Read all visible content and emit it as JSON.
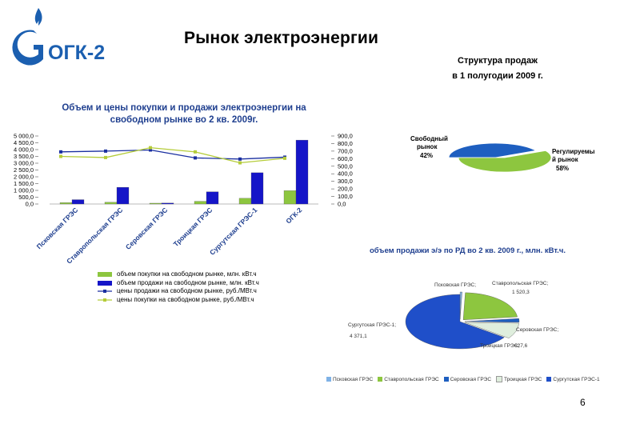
{
  "header": {
    "logo_text": "ОГК-2",
    "title": "Рынок электроэнергии",
    "page_number": "6"
  },
  "colors": {
    "brand_blue": "#1b5fb0",
    "bar_purchase": "#8dc63f",
    "bar_sale": "#1515c8",
    "line_sale_price": "#1a2fa0",
    "line_purchase_price": "#b5cc3a",
    "pie_free": "#1e5fc0",
    "pie_regulated": "#8dc63f"
  },
  "sales_structure": {
    "title_line1": "Структура продаж",
    "title_line2": "в 1 полугодии 2009 г.",
    "chart_data": {
      "type": "pie",
      "slices": [
        {
          "label_line1": "Свободный",
          "label_line2": "рынок",
          "label_value": "42%",
          "value": 42
        },
        {
          "label_line1": "Регулируемы",
          "label_line2": "й рынок",
          "label_value": "58%",
          "value": 58
        }
      ]
    }
  },
  "main_chart": {
    "title_line1": "Объем и цены покупки и продажи электроэнергии на",
    "title_line2": "свободном рынке во 2 кв. 2009г.",
    "chart_data": {
      "type": "bar",
      "categories": [
        "Псковская ГРЭС",
        "Ставропольская ГРЭС",
        "Серовская ГРЭС",
        "Троицкая ГРЭС",
        "Сургутская ГРЭС-1",
        "ОГК-2"
      ],
      "left_axis_ticks": [
        "5 000,0",
        "4 500,0",
        "4 000,0",
        "3 500,0",
        "3 000,0",
        "2 500,0",
        "2 000,0",
        "1 500,0",
        "1 000,0",
        "500,0",
        "0,0"
      ],
      "right_axis_ticks": [
        "900,0",
        "800,0",
        "700,0",
        "600,0",
        "500,0",
        "400,0",
        "300,0",
        "200,0",
        "100,0",
        "0,0"
      ],
      "ylim_left": [
        0,
        5000
      ],
      "ylim_right": [
        0,
        900
      ],
      "series": [
        {
          "name": "объем покупки на свободном рынке, млн. кВт.ч",
          "kind": "bar",
          "axis": "left",
          "values": [
            100,
            130,
            60,
            200,
            420,
            980
          ]
        },
        {
          "name": "объем продажи на свободном рынке, млн. кВт.ч",
          "kind": "bar",
          "axis": "left",
          "values": [
            320,
            1230,
            70,
            900,
            2300,
            4700
          ]
        },
        {
          "name": "цены продажи на свободном рынке, руб./МВт.ч",
          "kind": "line",
          "axis": "right",
          "values": [
            690,
            700,
            715,
            610,
            595,
            620
          ]
        },
        {
          "name": "цены покупки на свободном рынке, руб./МВт.ч",
          "kind": "line",
          "axis": "right",
          "values": [
            630,
            615,
            745,
            690,
            545,
            605
          ]
        }
      ]
    }
  },
  "rd_sales": {
    "title": "объем продажи э/э по РД во 2 кв. 2009 г., млн. кВт.ч.",
    "chart_data": {
      "type": "pie",
      "slices": [
        {
          "label": "Псковская ГРЭС;",
          "value_text": "",
          "value": 40
        },
        {
          "label": "Ставропольская ГРЭС;",
          "value_text": "1 520,3",
          "value": 1520.3
        },
        {
          "label": "Серовская ГРЭС;",
          "value_text": "",
          "value": 150
        },
        {
          "label": "Троицкая ГРЭС;",
          "value_text": "627,6",
          "value": 627.6
        },
        {
          "label": "Сургутская ГРЭС-1;",
          "value_text": "4 371,1",
          "value": 4371.1
        }
      ],
      "legend": [
        "Псковская ГРЭС",
        "Ставропольская ГРЭС",
        "Серовская ГРЭС",
        "Троицкая ГРЭС",
        "Сургутская ГРЭС-1"
      ],
      "slice_colors": [
        "#7fb2e6",
        "#8dc63f",
        "#1e5fc0",
        "#dfeedd",
        "#1f4fc9"
      ]
    }
  }
}
